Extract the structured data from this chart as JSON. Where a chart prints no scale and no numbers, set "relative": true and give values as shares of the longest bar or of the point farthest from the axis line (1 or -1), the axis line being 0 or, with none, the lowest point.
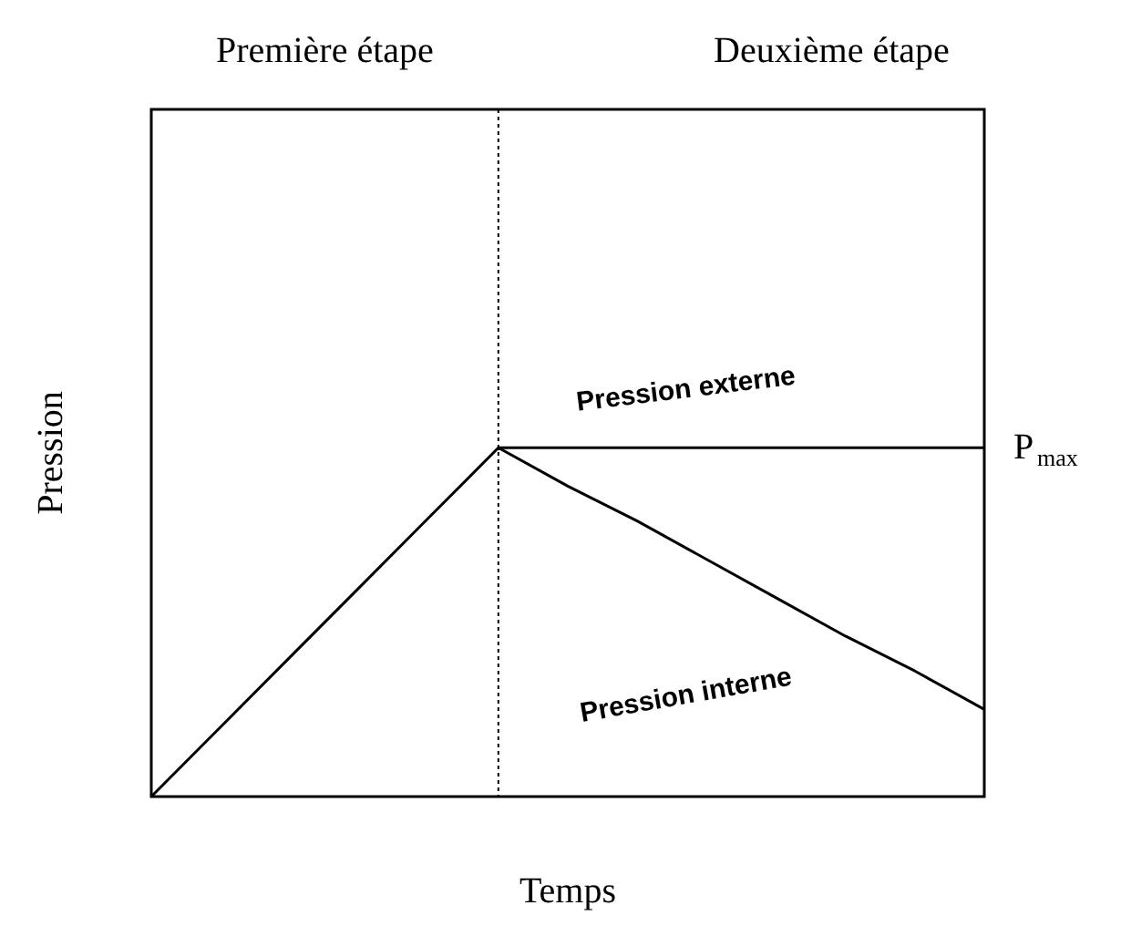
{
  "chart_data": {
    "type": "line",
    "relative": true,
    "xlabel": "Temps",
    "ylabel": "Pression",
    "categories": [
      null,
      null,
      null,
      null,
      null,
      null,
      null,
      null,
      null,
      null,
      null,
      null,
      null
    ],
    "series": [
      {
        "name": "Pression externe",
        "color": "#000000",
        "values": [
          null,
          null,
          null,
          null,
          null,
          1,
          1,
          1,
          1,
          1,
          1,
          1,
          1
        ]
      },
      {
        "name": "Pression interne",
        "color": "#000000",
        "values": [
          0,
          0.2,
          0.4,
          0.6,
          0.8,
          1,
          0.89,
          0.79,
          0.68,
          0.57,
          0.46,
          0.36,
          0.25
        ]
      }
    ],
    "annotations": [
      "Première étape",
      "Deuxième étape",
      "P$_{max}$"
    ],
    "tick_labels": false,
    "grid": false,
    "marker": "none",
    "line_style": "solid"
  }
}
